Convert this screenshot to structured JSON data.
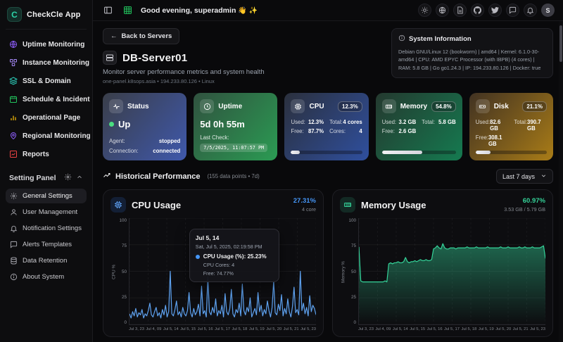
{
  "colors": {
    "brand_teal": "#2dd4a8",
    "purple": "#8b5cf6",
    "violet": "#a78bfa",
    "teal": "#2dd4bf",
    "green": "#22c55e",
    "yellow": "#eab308",
    "red": "#ef4444",
    "status_up_green": "#4ade80",
    "cpu_blue": "#4596f7",
    "memory_green": "#34d399"
  },
  "app": {
    "name": "CheckCle App",
    "logo_letter": "C"
  },
  "sidebar": {
    "items": [
      {
        "label": "Uptime Monitoring",
        "icon": "globe"
      },
      {
        "label": "Instance Monitoring",
        "icon": "cubes"
      },
      {
        "label": "SSL & Domain",
        "icon": "layers"
      },
      {
        "label": "Schedule & Incident",
        "icon": "calendar"
      },
      {
        "label": "Operational Page",
        "icon": "bar-chart"
      },
      {
        "label": "Regional Monitoring",
        "icon": "map-pin"
      },
      {
        "label": "Reports",
        "icon": "line-chart"
      }
    ],
    "settings_header": "Setting Panel",
    "settings_items": [
      {
        "label": "General Settings",
        "icon": "gear",
        "active": true
      },
      {
        "label": "User Management",
        "icon": "user"
      },
      {
        "label": "Notification Settings",
        "icon": "bell"
      },
      {
        "label": "Alerts Templates",
        "icon": "chat"
      },
      {
        "label": "Data Retention",
        "icon": "database"
      },
      {
        "label": "About System",
        "icon": "info"
      }
    ]
  },
  "header": {
    "greeting": "Good evening, superadmin",
    "greeting_emoji": "👋 ✨",
    "icons": [
      "panel-left",
      "grid",
      "sun",
      "globe",
      "changelog",
      "github",
      "twitter",
      "feedback",
      "bell"
    ],
    "avatar_letter": "S"
  },
  "page": {
    "back_button": "Back to Servers",
    "server_name": "DB-Server01",
    "subtitle": "Monitor server performance metrics and system health",
    "meta": "one-panel.k8sops.asia • 194.233.80.126 • Linux",
    "system_info": {
      "title": "System Information",
      "body": "Debian GNU/Linux 12 (bookworm) | amd64 | Kernel: 6.1.0-30-amd64 | CPU: AMD EPYC Processor (with IBPB) (4 cores) | RAM: 5.8 GB | Go go1.24.3 | IP: 194.233.80.126 | Docker: true"
    }
  },
  "cards": {
    "status": {
      "title": "Status",
      "value": "Up",
      "rows": [
        {
          "label": "Agent:",
          "value": "stopped"
        },
        {
          "label": "Connection:",
          "value": "connected"
        }
      ]
    },
    "uptime": {
      "title": "Uptime",
      "value": "5d 0h 55m",
      "last_check_label": "Last Check:",
      "last_check": "7/5/2025, 11:07:57 PM"
    },
    "cpu": {
      "title": "CPU",
      "badge": "12.3%",
      "used_label": "Used:",
      "used": "12.3%",
      "total_label": "Total:",
      "total": "4 cores",
      "free_label": "Free:",
      "free": "87.7%",
      "cores_label": "Cores:",
      "cores": "4",
      "progress": 12.3
    },
    "memory": {
      "title": "Memory",
      "badge": "54.8%",
      "used_label": "Used:",
      "used": "3.2 GB",
      "total_label": "Total:",
      "total": "5.8 GB",
      "free_label": "Free:",
      "free": "2.6 GB",
      "progress": 54.8
    },
    "disk": {
      "title": "Disk",
      "badge": "21.1%",
      "used_label": "Used:",
      "used": "82.6 GB",
      "total_label": "Total:",
      "total": "390.7 GB",
      "free_label": "Free:",
      "free": "308.1 GB",
      "progress": 21.1
    }
  },
  "history": {
    "title": "Historical Performance",
    "meta": "(155 data points • 7d)",
    "range": "Last 7 days"
  },
  "chart_data": [
    {
      "type": "line",
      "title": "CPU Usage",
      "header_value": "27.31%",
      "header_sub": "4 core",
      "ylabel": "CPU %",
      "ylim": [
        0,
        100
      ],
      "yticks": [
        0,
        25,
        50,
        75,
        100
      ],
      "grid": true,
      "legend": false,
      "color": "#5ea2f0",
      "fill_opacity": 0.15,
      "x_labels": [
        "Jul 3, 23",
        "Jul 4, 09",
        "Jul 5, 14",
        "Jul 5, 15",
        "Jul 5, 16",
        "Jul 5, 17",
        "Jul 5, 18",
        "Jul 5, 19",
        "Jul 5, 20",
        "Jul 5, 21",
        "Jul 5, 23"
      ],
      "values": [
        10,
        6,
        12,
        8,
        15,
        7,
        11,
        9,
        14,
        6,
        10,
        8,
        13,
        20,
        9,
        7,
        12,
        16,
        8,
        11,
        6,
        14,
        9,
        18,
        7,
        12,
        50,
        10,
        8,
        14,
        22,
        9,
        12,
        7,
        16,
        10,
        8,
        13,
        30,
        11,
        7,
        15,
        9,
        12,
        19,
        8,
        36,
        10,
        13,
        7,
        45,
        12,
        9,
        16,
        11,
        24,
        8,
        13,
        10,
        18,
        7,
        29,
        12,
        9,
        15,
        33,
        10,
        7,
        14,
        11,
        20,
        8,
        38,
        13,
        9,
        16,
        12,
        25,
        7,
        11,
        15,
        9,
        30,
        12,
        18,
        8,
        14,
        10,
        22,
        13,
        7,
        16,
        41,
        11,
        9,
        19,
        13,
        28,
        8,
        15,
        10,
        24,
        12,
        7,
        17,
        35,
        11,
        14,
        9,
        50,
        13,
        20,
        10,
        16,
        8,
        27,
        12,
        18,
        15,
        9
      ],
      "tooltip": {
        "title": "Jul 5, 14",
        "datetime": "Sat, Jul 5, 2025, 02:19:58 PM",
        "usage": "CPU Usage (%): 25.23%",
        "cores": "CPU Cores: 4",
        "free": "Free: 74.77%"
      }
    },
    {
      "type": "area",
      "title": "Memory Usage",
      "header_value": "60.97%",
      "header_sub": "3.53 GB / 5.79 GB",
      "ylabel": "Memory %",
      "ylim": [
        0,
        100
      ],
      "yticks": [
        0,
        25,
        50,
        75,
        100
      ],
      "grid": true,
      "legend": false,
      "color": "#34d399",
      "fill_opacity": 0.45,
      "x_labels": [
        "Jul 3, 23",
        "Jul 4, 09",
        "Jul 5, 14",
        "Jul 5, 15",
        "Jul 5, 16",
        "Jul 5, 17",
        "Jul 5, 18",
        "Jul 5, 19",
        "Jul 5, 20",
        "Jul 5, 21",
        "Jul 5, 23"
      ],
      "values": [
        73,
        41,
        40,
        40,
        40,
        40,
        40,
        40,
        40,
        40,
        40,
        40,
        40,
        40,
        41,
        40,
        57,
        58,
        57,
        58,
        58,
        59,
        58,
        58,
        59,
        63,
        59,
        58,
        59,
        59,
        60,
        59,
        60,
        61,
        60,
        60,
        61,
        60,
        60,
        61,
        71,
        72,
        74,
        72,
        71,
        76,
        72,
        71,
        71,
        72,
        72,
        72,
        71,
        72,
        72,
        72,
        72,
        72,
        73,
        72,
        72,
        72,
        72,
        73,
        72,
        72,
        72,
        72,
        72,
        73,
        72,
        72,
        72,
        72,
        72,
        72,
        73,
        72,
        72,
        72,
        73,
        72,
        72,
        72,
        72,
        72,
        73,
        72,
        72,
        73,
        72,
        72,
        72,
        73,
        72,
        72,
        72,
        72,
        73,
        74,
        62
      ]
    }
  ]
}
